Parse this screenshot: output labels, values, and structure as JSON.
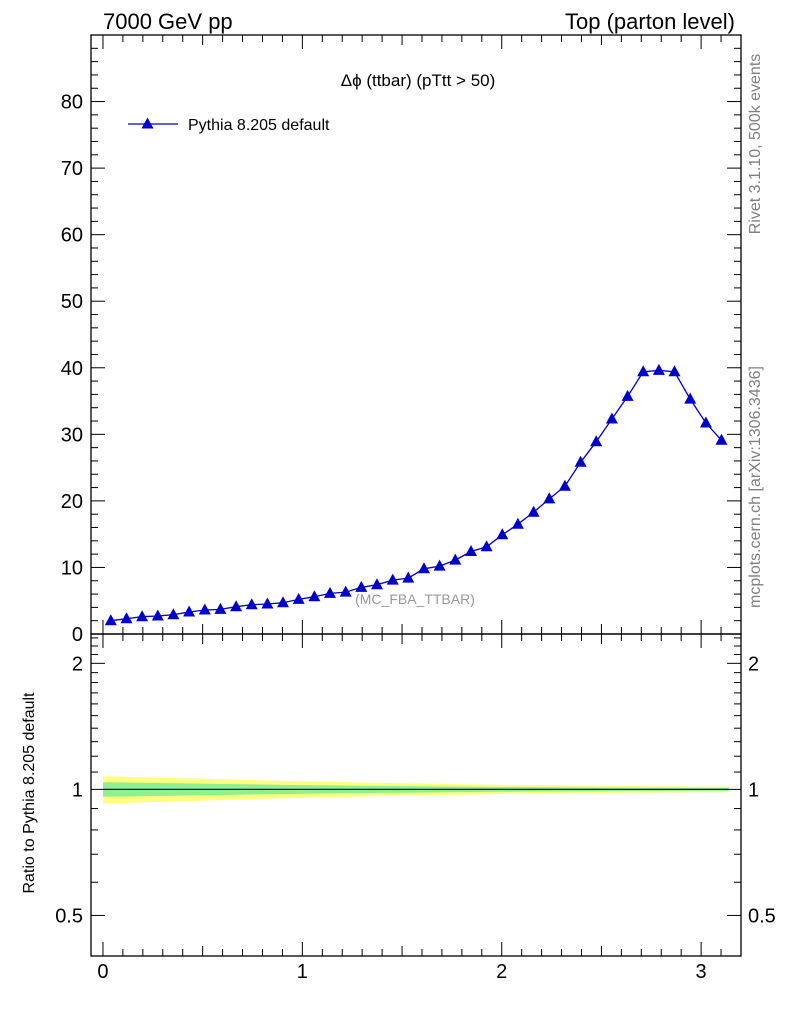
{
  "header": {
    "left": "7000 GeV pp",
    "right": "Top (parton level)"
  },
  "side": {
    "rivet": "Rivet 3.1.10,  500k events",
    "mcplots": "mcplots.cern.ch [arXiv:1306.3436]"
  },
  "chart_data": [
    {
      "type": "line",
      "title": "Δϕ (ttbar) (pTtt > 50)",
      "analysis_label": "(MC_FBA_TTBAR)",
      "legend_location": "top-left",
      "xlim": [
        -0.06,
        3.2
      ],
      "ylim": [
        0,
        90
      ],
      "yticks": [
        0,
        10,
        20,
        30,
        40,
        50,
        60,
        70,
        80
      ],
      "ytick_labels": [
        "0",
        "10",
        "20",
        "30",
        "40",
        "50",
        "60",
        "70",
        "80"
      ],
      "series": [
        {
          "name": "Pythia 8.205 default",
          "color": "#0000cc",
          "marker": "triangle-up",
          "x": [
            0.0393,
            0.1178,
            0.1963,
            0.2749,
            0.3534,
            0.432,
            0.5105,
            0.589,
            0.6676,
            0.7461,
            0.8247,
            0.9032,
            0.9817,
            1.0603,
            1.1388,
            1.2174,
            1.2959,
            1.3744,
            1.453,
            1.5315,
            1.6101,
            1.6886,
            1.7671,
            1.8457,
            1.9242,
            2.0028,
            2.0813,
            2.1598,
            2.2384,
            2.3169,
            2.3955,
            2.474,
            2.5525,
            2.6311,
            2.7096,
            2.7882,
            2.8667,
            2.9452,
            3.0238,
            3.1023
          ],
          "values": [
            2.0,
            2.3,
            2.6,
            2.7,
            2.9,
            3.3,
            3.6,
            3.7,
            4.1,
            4.4,
            4.5,
            4.7,
            5.2,
            5.6,
            6.1,
            6.3,
            7.0,
            7.4,
            8.1,
            8.4,
            9.8,
            10.2,
            11.1,
            12.4,
            13.1,
            14.9,
            16.5,
            18.3,
            20.3,
            22.2,
            25.8,
            28.9,
            32.3,
            35.7,
            39.4,
            39.6,
            39.4,
            35.3,
            31.7,
            29.1
          ]
        }
      ]
    },
    {
      "type": "area",
      "ylabel": "Ratio to Pythia 8.205 default",
      "xlim": [
        -0.06,
        3.2
      ],
      "ylim": [
        0.4,
        2.35
      ],
      "yscale": "log",
      "yticks": [
        0.5,
        1,
        2
      ],
      "ytick_labels": [
        "0.5",
        "1",
        "2"
      ],
      "xticks": [
        0,
        1,
        2,
        3
      ],
      "xtick_labels": [
        "0",
        "1",
        "2",
        "3"
      ],
      "reference": 1.0,
      "band_x": [
        0.0,
        0.5,
        1.0,
        1.5,
        2.0,
        2.5,
        3.0,
        3.14
      ],
      "inner_band_halfwidth": [
        0.04,
        0.032,
        0.024,
        0.018,
        0.013,
        0.01,
        0.008,
        0.008
      ],
      "outer_band_halfwidth": [
        0.075,
        0.06,
        0.045,
        0.034,
        0.025,
        0.02,
        0.016,
        0.016
      ],
      "colors": {
        "inner": "#8ff08f",
        "outer": "#ffff80"
      }
    }
  ]
}
